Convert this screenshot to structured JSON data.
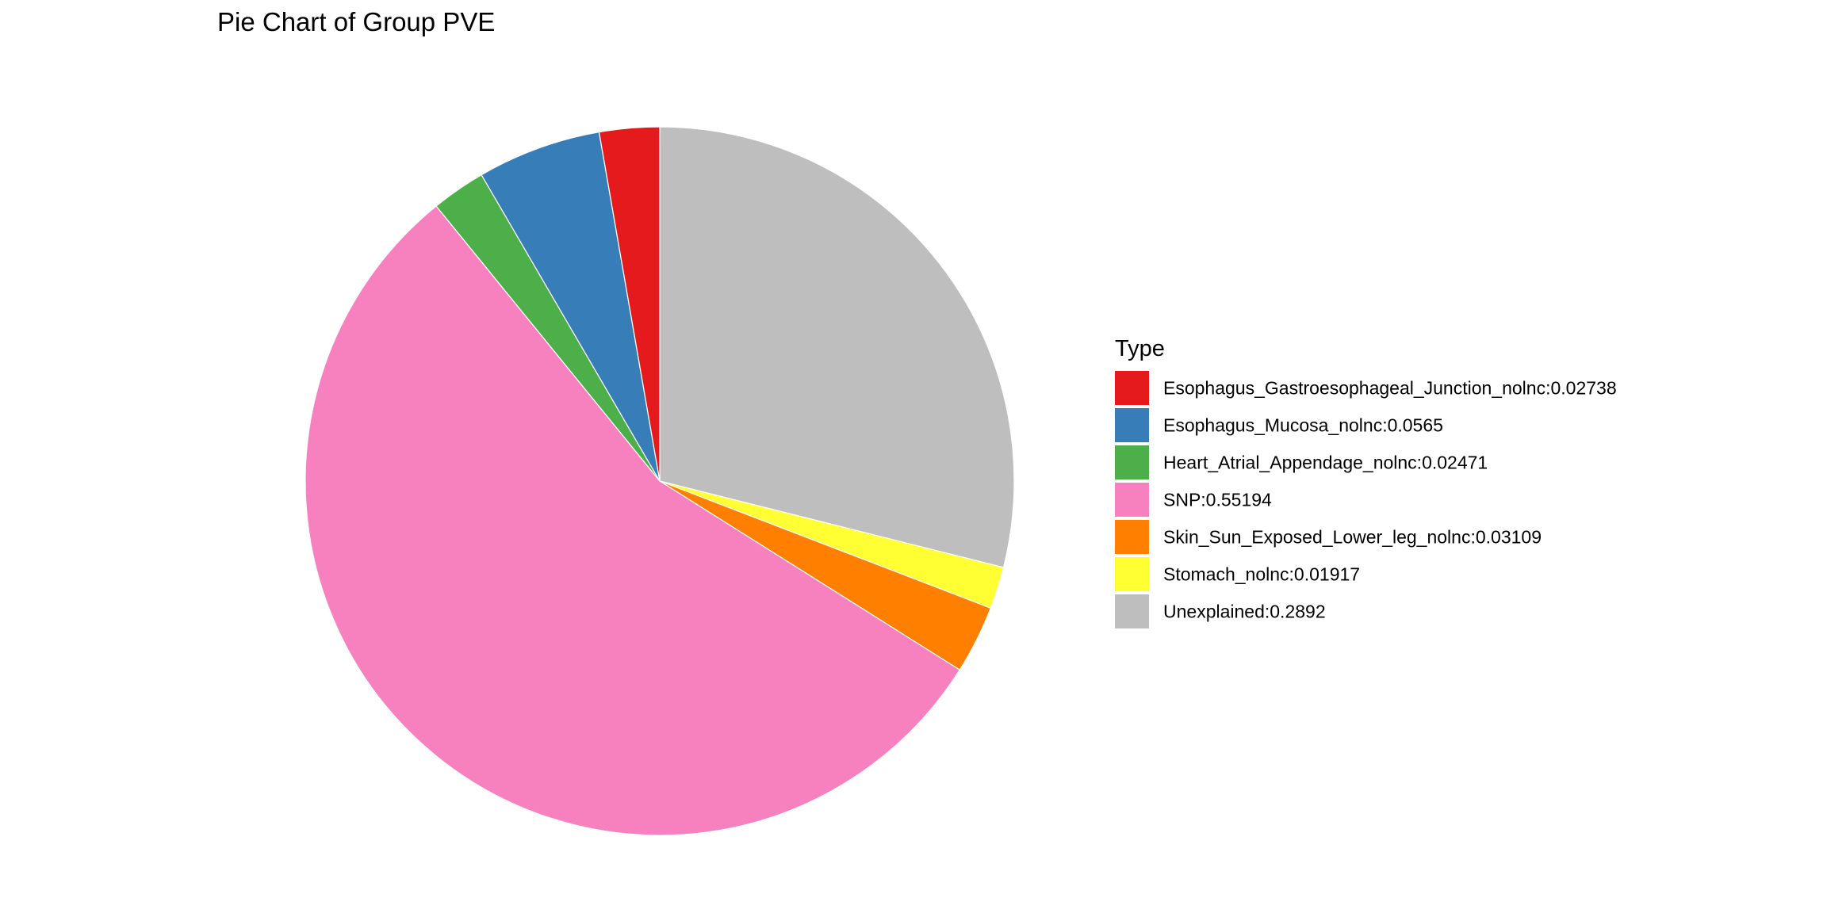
{
  "chart_data": {
    "type": "pie",
    "title": "Pie Chart of Group PVE",
    "legend_title": "Type",
    "legend_position": "right",
    "start_angle": "12 o'clock",
    "direction": "clockwise",
    "slice_order": [
      "Unexplained",
      "Stomach",
      "Skin",
      "SNP",
      "Heart",
      "Mucosa",
      "GEJ"
    ],
    "slices": [
      {
        "key": "GEJ",
        "label": "Esophagus_Gastroesophageal_Junction_nolnc:0.02738",
        "value": 0.02738,
        "color": "#E41A1C"
      },
      {
        "key": "Mucosa",
        "label": "Esophagus_Mucosa_nolnc:0.0565",
        "value": 0.0565,
        "color": "#377EB8"
      },
      {
        "key": "Heart",
        "label": "Heart_Atrial_Appendage_nolnc:0.02471",
        "value": 0.02471,
        "color": "#4DAF4A"
      },
      {
        "key": "SNP",
        "label": "SNP:0.55194",
        "value": 0.55194,
        "color": "#F781BF"
      },
      {
        "key": "Skin",
        "label": "Skin_Sun_Exposed_Lower_leg_nolnc:0.03109",
        "value": 0.03109,
        "color": "#FF7F00"
      },
      {
        "key": "Stomach",
        "label": "Stomach_nolnc:0.01917",
        "value": 0.01917,
        "color": "#FFFF33"
      },
      {
        "key": "Unexplained",
        "label": "Unexplained:0.2892",
        "value": 0.2892,
        "color": "#BEBEBE"
      }
    ]
  }
}
